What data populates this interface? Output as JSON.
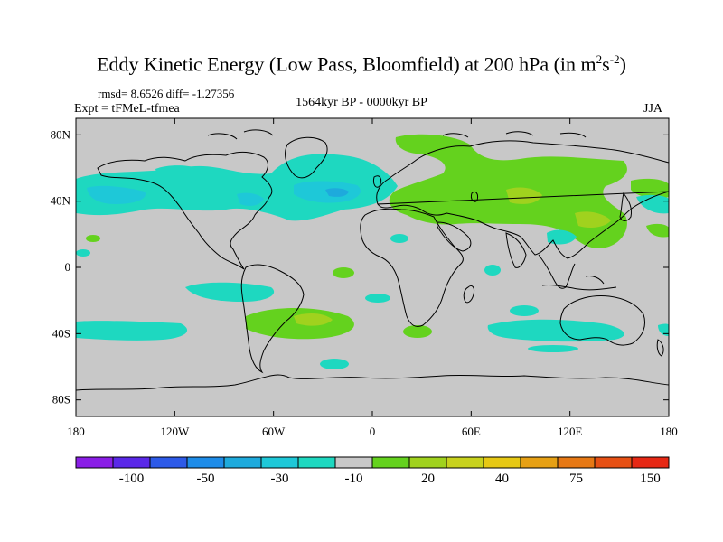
{
  "title": {
    "main": "Eddy Kinetic Energy (Low Pass, Bloomfield) at 200 hPa (in m",
    "sup1": "2",
    "mid": "s",
    "sup2": "-2",
    "end": ")"
  },
  "stats": "rmsd= 8.6526 diff= -1.27356",
  "expt": "Expt = tFMeL-tfmea",
  "period": "1564kyr BP - 0000kyr BP",
  "season": "JJA",
  "map": {
    "lon_ticks": [
      "180",
      "120W",
      "60W",
      "0",
      "60E",
      "120E",
      "180"
    ],
    "lat_ticks": [
      "80N",
      "40N",
      "0",
      "40S",
      "80S"
    ]
  },
  "colorbar": {
    "colors": [
      "#8a1ee6",
      "#5a28e8",
      "#2d5ae8",
      "#1e8ce8",
      "#1eaadc",
      "#1ec8d8",
      "#1ed8c0",
      "#c8c8c8",
      "#64d21e",
      "#a0d21e",
      "#c8d21e",
      "#e6c814",
      "#e6a014",
      "#e67814",
      "#e65014",
      "#e62814"
    ],
    "labels": [
      "-100",
      "-50",
      "-30",
      "-10",
      "20",
      "40",
      "75",
      "150"
    ]
  },
  "legend_colors": {
    "land_fill": "#c8c8c8",
    "coast_line": "#000000"
  }
}
